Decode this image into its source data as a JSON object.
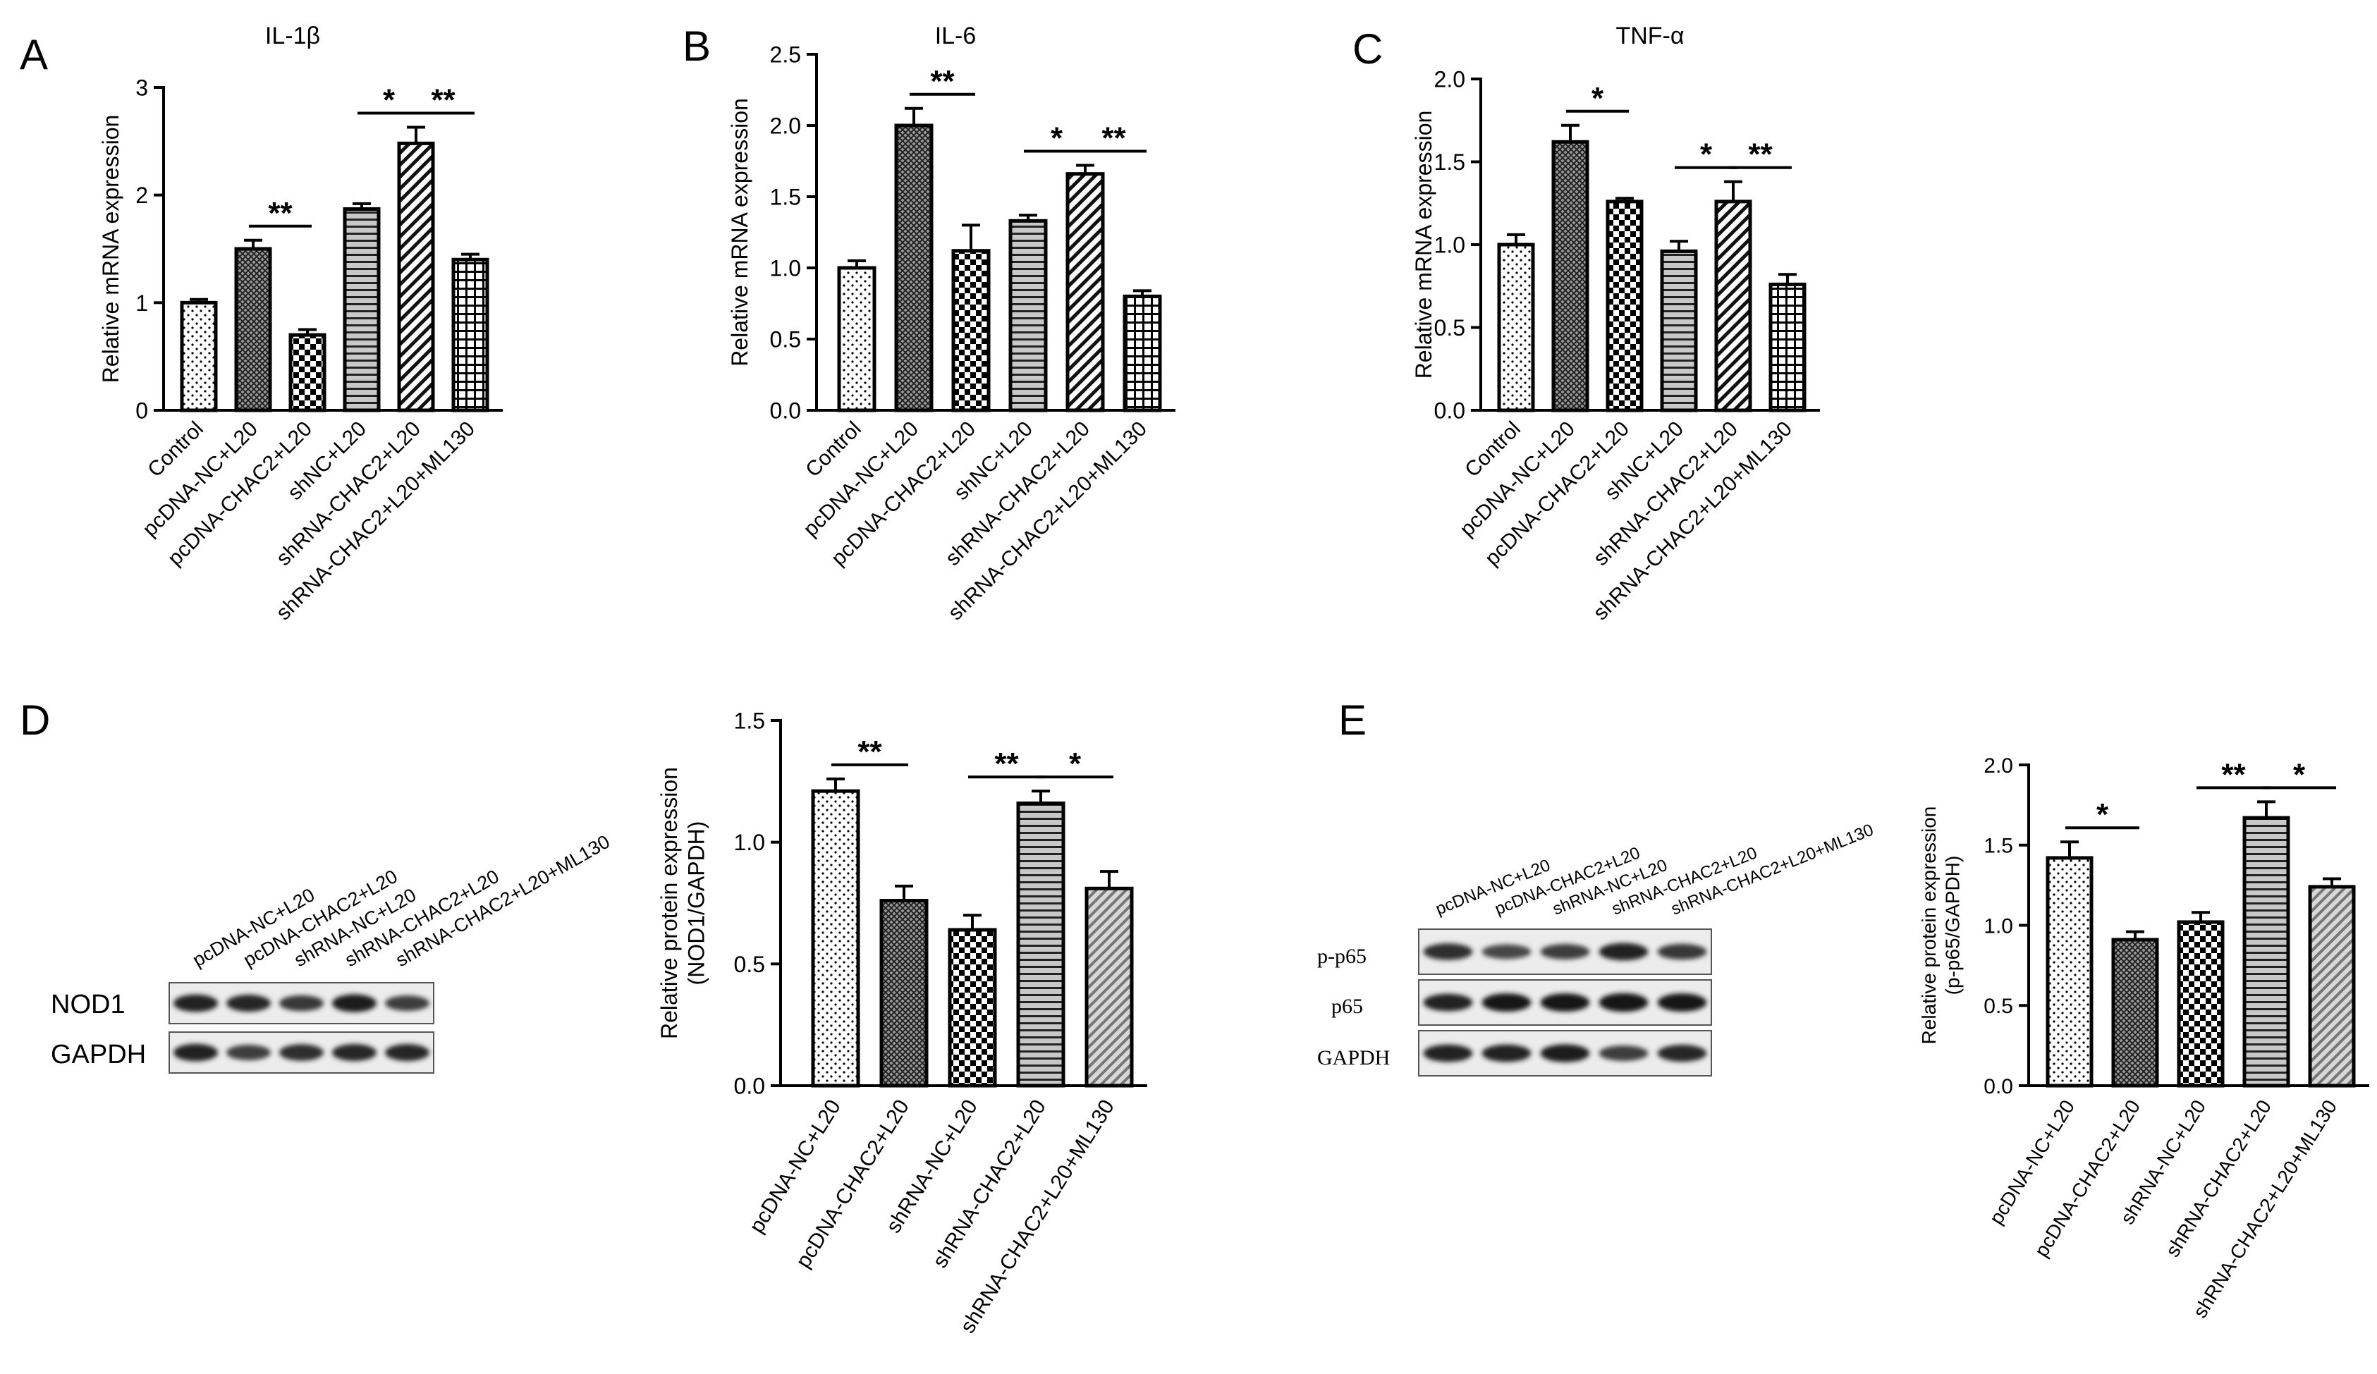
{
  "panel_letters": [
    "A",
    "B",
    "C",
    "D",
    "E"
  ],
  "blots": [
    {
      "panel": "D",
      "lane_labels": [
        "pcDNA-NC+L20",
        "pcDNA-CHAC2+L20",
        "shRNA-NC+L20",
        "shRNA-CHAC2+L20",
        "shRNA-CHAC2+L20+ML130"
      ],
      "rows": [
        {
          "label": "NOD1",
          "band_intensity": [
            0.85,
            0.8,
            0.65,
            0.9,
            0.6
          ]
        },
        {
          "label": "GAPDH",
          "band_intensity": [
            0.85,
            0.6,
            0.75,
            0.8,
            0.8
          ]
        }
      ]
    },
    {
      "panel": "E",
      "lane_labels": [
        "pcDNA-NC+L20",
        "pcDNA-CHAC2+L20",
        "shRNA-NC+L20",
        "shRNA-CHAC2+L20",
        "shRNA-CHAC2+L20+ML130"
      ],
      "rows": [
        {
          "label": "p-p65",
          "band_intensity": [
            0.75,
            0.5,
            0.6,
            0.85,
            0.65
          ]
        },
        {
          "label": "p65",
          "band_intensity": [
            0.85,
            0.95,
            0.95,
            1.0,
            0.95
          ]
        },
        {
          "label": "GAPDH",
          "band_intensity": [
            0.85,
            0.85,
            0.9,
            0.6,
            0.8
          ]
        }
      ]
    }
  ],
  "chart_data": [
    {
      "panel": "A",
      "type": "bar",
      "title": "IL-1β",
      "xlabel": "",
      "ylabel": "Relative mRNA expression",
      "ylim": [
        0,
        3
      ],
      "yticks": [
        0,
        1,
        2,
        3
      ],
      "categories": [
        "Control",
        "pcDNA-NC+L20",
        "pcDNA-CHAC2+L20",
        "shNC+L20",
        "shRNA-CHAC2+L20",
        "shRNA-CHAC2+L20+ML130"
      ],
      "values": [
        1.0,
        1.5,
        0.7,
        1.87,
        2.48,
        1.4
      ],
      "errors": [
        0.03,
        0.08,
        0.05,
        0.05,
        0.15,
        0.05
      ],
      "patterns": [
        "dots",
        "crosshatch",
        "checker",
        "hlines",
        "diag",
        "grid"
      ],
      "significance": [
        {
          "from": 1,
          "to": 2,
          "label": "**"
        },
        {
          "from": 3,
          "to": 4,
          "label": "*"
        },
        {
          "from": 4,
          "to": 5,
          "label": "**"
        }
      ]
    },
    {
      "panel": "B",
      "type": "bar",
      "title": "IL-6",
      "xlabel": "",
      "ylabel": "Relative mRNA expression",
      "ylim": [
        0,
        2.5
      ],
      "yticks": [
        "0.0",
        "0.5",
        "1.0",
        "1.5",
        "2.0",
        "2.5"
      ],
      "categories": [
        "Control",
        "pcDNA-NC+L20",
        "pcDNA-CHAC2+L20",
        "shNC+L20",
        "shRNA-CHAC2+L20",
        "shRNA-CHAC2+L20+ML130"
      ],
      "values": [
        1.0,
        2.0,
        1.12,
        1.33,
        1.66,
        0.8
      ],
      "errors": [
        0.05,
        0.12,
        0.18,
        0.04,
        0.06,
        0.04
      ],
      "patterns": [
        "dots",
        "crosshatch",
        "checker",
        "hlines",
        "diag",
        "grid"
      ],
      "significance": [
        {
          "from": 1,
          "to": 2,
          "label": "**"
        },
        {
          "from": 3,
          "to": 4,
          "label": "*"
        },
        {
          "from": 4,
          "to": 5,
          "label": "**"
        }
      ]
    },
    {
      "panel": "C",
      "type": "bar",
      "title": "TNF-α",
      "xlabel": "",
      "ylabel": "Relative mRNA expression",
      "ylim": [
        0,
        2.0
      ],
      "yticks": [
        "0.0",
        "0.5",
        "1.0",
        "1.5",
        "2.0"
      ],
      "categories": [
        "Control",
        "pcDNA-NC+L20",
        "pcDNA-CHAC2+L20",
        "shNC+L20",
        "shRNA-CHAC2+L20",
        "shRNA-CHAC2+L20+ML130"
      ],
      "values": [
        1.0,
        1.62,
        1.26,
        0.96,
        1.26,
        0.76
      ],
      "errors": [
        0.06,
        0.1,
        0.02,
        0.06,
        0.12,
        0.06
      ],
      "patterns": [
        "dots",
        "crosshatch",
        "checker",
        "hlines",
        "diag",
        "grid"
      ],
      "significance": [
        {
          "from": 1,
          "to": 2,
          "label": "*"
        },
        {
          "from": 3,
          "to": 4,
          "label": "*"
        },
        {
          "from": 4,
          "to": 5,
          "label": "**"
        }
      ]
    },
    {
      "panel": "D",
      "type": "bar",
      "title": "",
      "xlabel": "",
      "ylabel": "Relative protein expression",
      "ylabel2": "(NOD1/GAPDH)",
      "ylim": [
        0,
        1.5
      ],
      "yticks": [
        "0.0",
        "0.5",
        "1.0",
        "1.5"
      ],
      "categories": [
        "pcDNA-NC+L20",
        "pcDNA-CHAC2+L20",
        "shRNA-NC+L20",
        "shRNA-CHAC2+L20",
        "shRNA-CHAC2+L20+ML130"
      ],
      "values": [
        1.21,
        0.76,
        0.64,
        1.16,
        0.81
      ],
      "errors": [
        0.05,
        0.06,
        0.06,
        0.05,
        0.07
      ],
      "patterns": [
        "dots",
        "crosshatch",
        "checker",
        "hlines",
        "diag-gray"
      ],
      "significance": [
        {
          "from": 0,
          "to": 1,
          "label": "**"
        },
        {
          "from": 2,
          "to": 3,
          "label": "**"
        },
        {
          "from": 3,
          "to": 4,
          "label": "*"
        }
      ]
    },
    {
      "panel": "E",
      "type": "bar",
      "title": "",
      "xlabel": "",
      "ylabel": "Relative protein expression",
      "ylabel2": "(p-p65/GAPDH)",
      "ylim": [
        0,
        2.0
      ],
      "yticks": [
        "0.0",
        "0.5",
        "1.0",
        "1.5",
        "2.0"
      ],
      "categories": [
        "pcDNA-NC+L20",
        "pcDNA-CHAC2+L20",
        "shRNA-NC+L20",
        "shRNA-CHAC2+L20",
        "shRNA-CHAC2+L20+ML130"
      ],
      "values": [
        1.42,
        0.91,
        1.02,
        1.67,
        1.24
      ],
      "errors": [
        0.1,
        0.05,
        0.06,
        0.1,
        0.05
      ],
      "patterns": [
        "dots",
        "crosshatch",
        "checker",
        "hlines",
        "diag-gray"
      ],
      "significance": [
        {
          "from": 0,
          "to": 1,
          "label": "*"
        },
        {
          "from": 2,
          "to": 3,
          "label": "**"
        },
        {
          "from": 3,
          "to": 4,
          "label": "*"
        }
      ]
    }
  ]
}
